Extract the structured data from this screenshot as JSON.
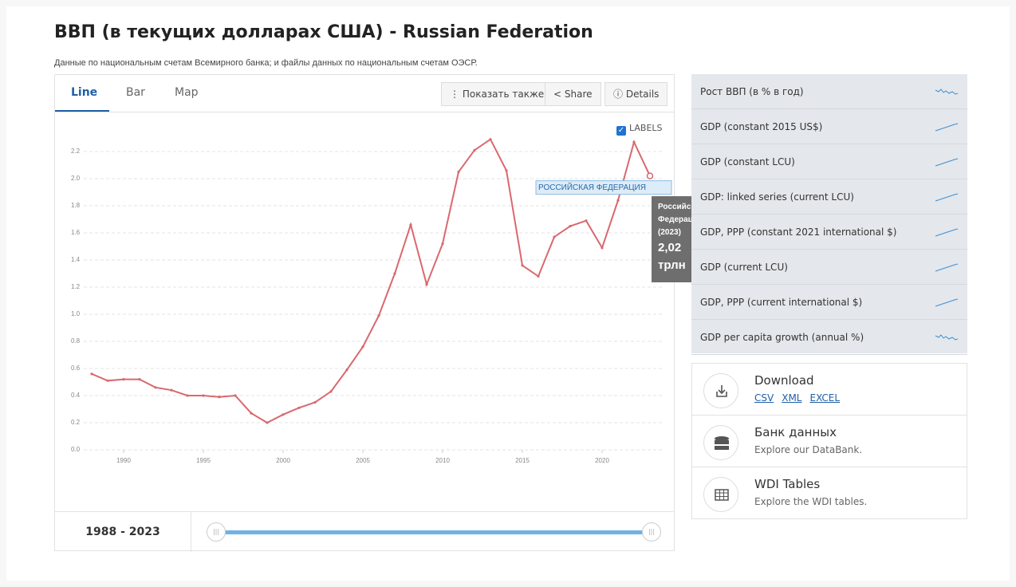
{
  "header": {
    "title": "ВВП (в текущих долларах США) - Russian Federation",
    "subtitle": "Данные по национальным счетам Всемирного банка; и файлы данных по национальным счетам ОЭСР."
  },
  "tabs": [
    "Line",
    "Bar",
    "Map"
  ],
  "buttons": [
    "Показать также",
    "Share",
    "Details"
  ],
  "labels_toggle": "LABELS",
  "chart_data": {
    "type": "line",
    "x": [
      1988,
      1989,
      1990,
      1991,
      1992,
      1993,
      1994,
      1995,
      1996,
      1997,
      1998,
      1999,
      2000,
      2001,
      2002,
      2003,
      2004,
      2005,
      2006,
      2007,
      2008,
      2009,
      2010,
      2011,
      2012,
      2013,
      2014,
      2015,
      2016,
      2017,
      2018,
      2019,
      2020,
      2021,
      2022,
      2023
    ],
    "series": [
      {
        "name": "РОССИЙСКАЯ ФЕДЕРАЦИЯ",
        "color": "#d9686e",
        "values": [
          0.56,
          0.51,
          0.52,
          0.52,
          0.46,
          0.44,
          0.4,
          0.4,
          0.39,
          0.4,
          0.27,
          0.2,
          0.26,
          0.31,
          0.35,
          0.43,
          0.59,
          0.76,
          0.99,
          1.3,
          1.66,
          1.22,
          1.52,
          2.05,
          2.21,
          2.29,
          2.06,
          1.36,
          1.28,
          1.57,
          1.65,
          1.69,
          1.49,
          1.84,
          2.27,
          2.02
        ]
      }
    ],
    "xlim": [
      1988,
      2023
    ],
    "xticks": [
      1990,
      1995,
      2000,
      2005,
      2010,
      2015,
      2020
    ],
    "ylim": [
      0,
      2.4
    ],
    "yticks": [
      {
        "value": 0,
        "label": "0.0"
      },
      0.2,
      0.4,
      0.6,
      0.8,
      {
        "value": 1,
        "label": "1.0"
      },
      1.2,
      1.4,
      1.6,
      1.8,
      {
        "value": 2,
        "label": "2.0"
      },
      2.2
    ],
    "grid": true
  },
  "tooltip": {
    "name": "Российская Федерация",
    "year": "(2023)",
    "value": "2,02 трлн"
  },
  "range_label": "1988 - 2023",
  "related": [
    "Рост ВВП (в % в год)",
    "GDP (constant 2015 US$)",
    "GDP (constant LCU)",
    "GDP: linked series (current LCU)",
    "GDP, PPP (constant 2021 international $)",
    "GDP (current LCU)",
    "GDP, PPP (current international $)",
    "GDP per capita growth (annual %)"
  ],
  "cards": [
    {
      "title": "Download",
      "links": [
        "CSV",
        "XML",
        "EXCEL"
      ]
    },
    {
      "title": "Банк данных",
      "text": "Explore our DataBank."
    },
    {
      "title": "WDI Tables",
      "text": "Explore the WDI tables."
    }
  ]
}
